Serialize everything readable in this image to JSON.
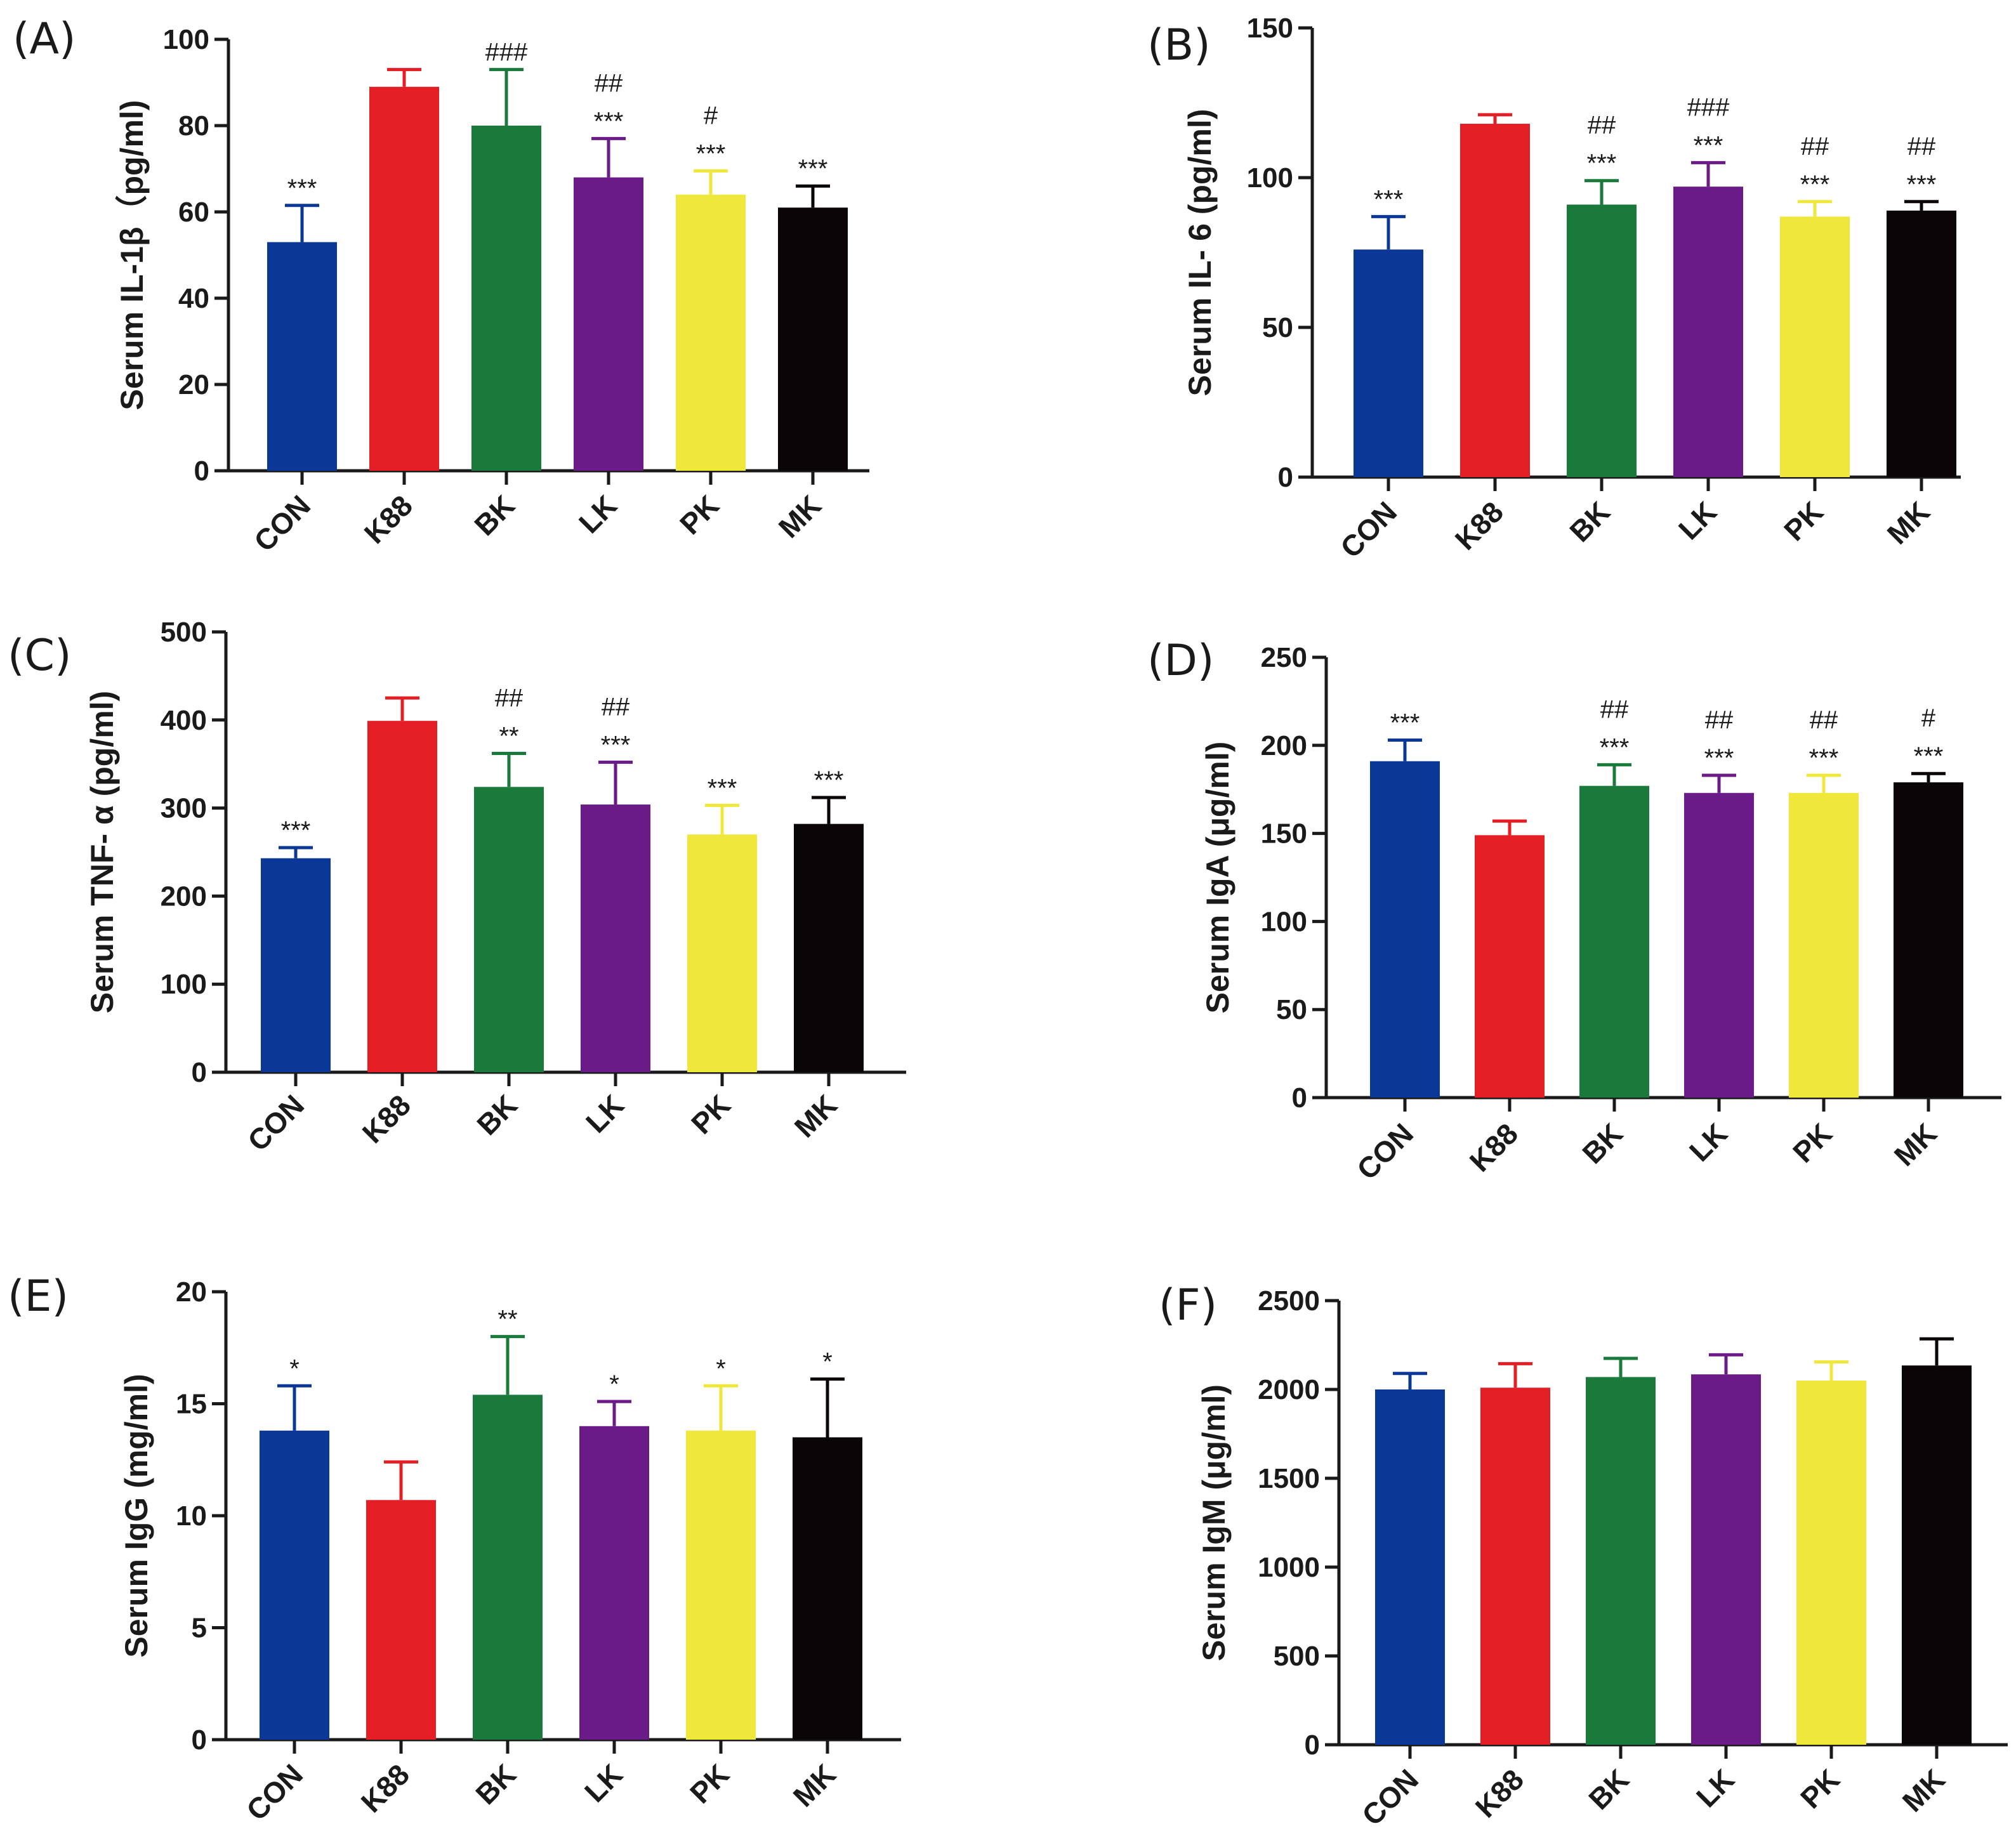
{
  "figure": {
    "background": "#ffffff",
    "axis_color": "#1a1a1a"
  },
  "chart_data": [
    {
      "panel": "(A)",
      "type": "bar",
      "ylabel": "Serum IL-1β（pg/ml)",
      "ylim": [
        0,
        100
      ],
      "yticks": [
        "0",
        "20",
        "40",
        "60",
        "80",
        "100"
      ],
      "categories": [
        "CON",
        "K88",
        "BK",
        "LK",
        "PK",
        "MK"
      ],
      "values": [
        53,
        89,
        80,
        68,
        64,
        61
      ],
      "errors": [
        8.5,
        4,
        13,
        9,
        5.5,
        5
      ],
      "significance": [
        [
          "***"
        ],
        [],
        [
          "###"
        ],
        [
          "##",
          "***"
        ],
        [
          "#",
          "***"
        ],
        [
          "***"
        ]
      ],
      "colors": [
        "#0b3896",
        "#e31e25",
        "#1a7a3c",
        "#6a1b87",
        "#efe83b",
        "#0a0506"
      ]
    },
    {
      "panel": "(B)",
      "type": "bar",
      "ylabel": "Serum IL- 6 (pg/ml)",
      "ylim": [
        0,
        150
      ],
      "yticks": [
        "0",
        "50",
        "100",
        "150"
      ],
      "categories": [
        "CON",
        "K88",
        "BK",
        "LK",
        "PK",
        "MK"
      ],
      "values": [
        76,
        118,
        91,
        97,
        87,
        89
      ],
      "errors": [
        11,
        3,
        8,
        8,
        5,
        3
      ],
      "significance": [
        [
          "***"
        ],
        [],
        [
          "##",
          "***"
        ],
        [
          "###",
          "***"
        ],
        [
          "##",
          "***"
        ],
        [
          "##",
          "***"
        ]
      ],
      "colors": [
        "#0b3896",
        "#e31e25",
        "#1a7a3c",
        "#6a1b87",
        "#efe83b",
        "#0a0506"
      ]
    },
    {
      "panel": "(C)",
      "type": "bar",
      "ylabel": "Serum TNF- α (pg/ml)",
      "ylim": [
        0,
        500
      ],
      "yticks": [
        "0",
        "100",
        "200",
        "300",
        "400",
        "500"
      ],
      "categories": [
        "CON",
        "K88",
        "BK",
        "LK",
        "PK",
        "MK"
      ],
      "values": [
        243,
        399,
        324,
        304,
        270,
        282
      ],
      "errors": [
        12,
        26,
        38,
        48,
        33,
        30
      ],
      "significance": [
        [
          "***"
        ],
        [],
        [
          "##",
          "**"
        ],
        [
          "##",
          "***"
        ],
        [
          "***"
        ],
        [
          "***"
        ]
      ],
      "colors": [
        "#0b3896",
        "#e31e25",
        "#1a7a3c",
        "#6a1b87",
        "#efe83b",
        "#0a0506"
      ]
    },
    {
      "panel": "(D)",
      "type": "bar",
      "ylabel": "Serum IgA (μg/ml)",
      "ylim": [
        0,
        250
      ],
      "yticks": [
        "0",
        "50",
        "100",
        "150",
        "200",
        "250"
      ],
      "categories": [
        "CON",
        "K88",
        "BK",
        "LK",
        "PK",
        "MK"
      ],
      "values": [
        191,
        149,
        177,
        173,
        173,
        179
      ],
      "errors": [
        12,
        8,
        12,
        10,
        10,
        5
      ],
      "significance": [
        [
          "***"
        ],
        [],
        [
          "##",
          "***"
        ],
        [
          "##",
          "***"
        ],
        [
          "##",
          "***"
        ],
        [
          "#",
          "***"
        ]
      ],
      "colors": [
        "#0b3896",
        "#e31e25",
        "#1a7a3c",
        "#6a1b87",
        "#efe83b",
        "#0a0506"
      ]
    },
    {
      "panel": "(E)",
      "type": "bar",
      "ylabel": "Serum IgG (mg/ml)",
      "ylim": [
        0,
        20
      ],
      "yticks": [
        "0",
        "5",
        "10",
        "15",
        "20"
      ],
      "categories": [
        "CON",
        "K88",
        "BK",
        "LK",
        "PK",
        "MK"
      ],
      "values": [
        13.8,
        10.7,
        15.4,
        14.0,
        13.8,
        13.5
      ],
      "errors": [
        2.0,
        1.7,
        2.6,
        1.1,
        2.0,
        2.6
      ],
      "significance": [
        [
          "*"
        ],
        [],
        [
          "**"
        ],
        [
          "*"
        ],
        [
          "*"
        ],
        [
          "*"
        ]
      ],
      "colors": [
        "#0b3896",
        "#e31e25",
        "#1a7a3c",
        "#6a1b87",
        "#efe83b",
        "#0a0506"
      ]
    },
    {
      "panel": "(F)",
      "type": "bar",
      "ylabel": "Serum IgM (μg/ml)",
      "ylim": [
        0,
        2500
      ],
      "yticks": [
        "0",
        "500",
        "1000",
        "1500",
        "2000",
        "2500"
      ],
      "categories": [
        "CON",
        "K88",
        "BK",
        "LK",
        "PK",
        "MK"
      ],
      "values": [
        2000,
        2010,
        2070,
        2085,
        2050,
        2135
      ],
      "errors": [
        90,
        135,
        105,
        110,
        105,
        150
      ],
      "significance": [
        [],
        [],
        [],
        [],
        [],
        []
      ],
      "colors": [
        "#0b3896",
        "#e31e25",
        "#1a7a3c",
        "#6a1b87",
        "#efe83b",
        "#0a0506"
      ]
    }
  ]
}
